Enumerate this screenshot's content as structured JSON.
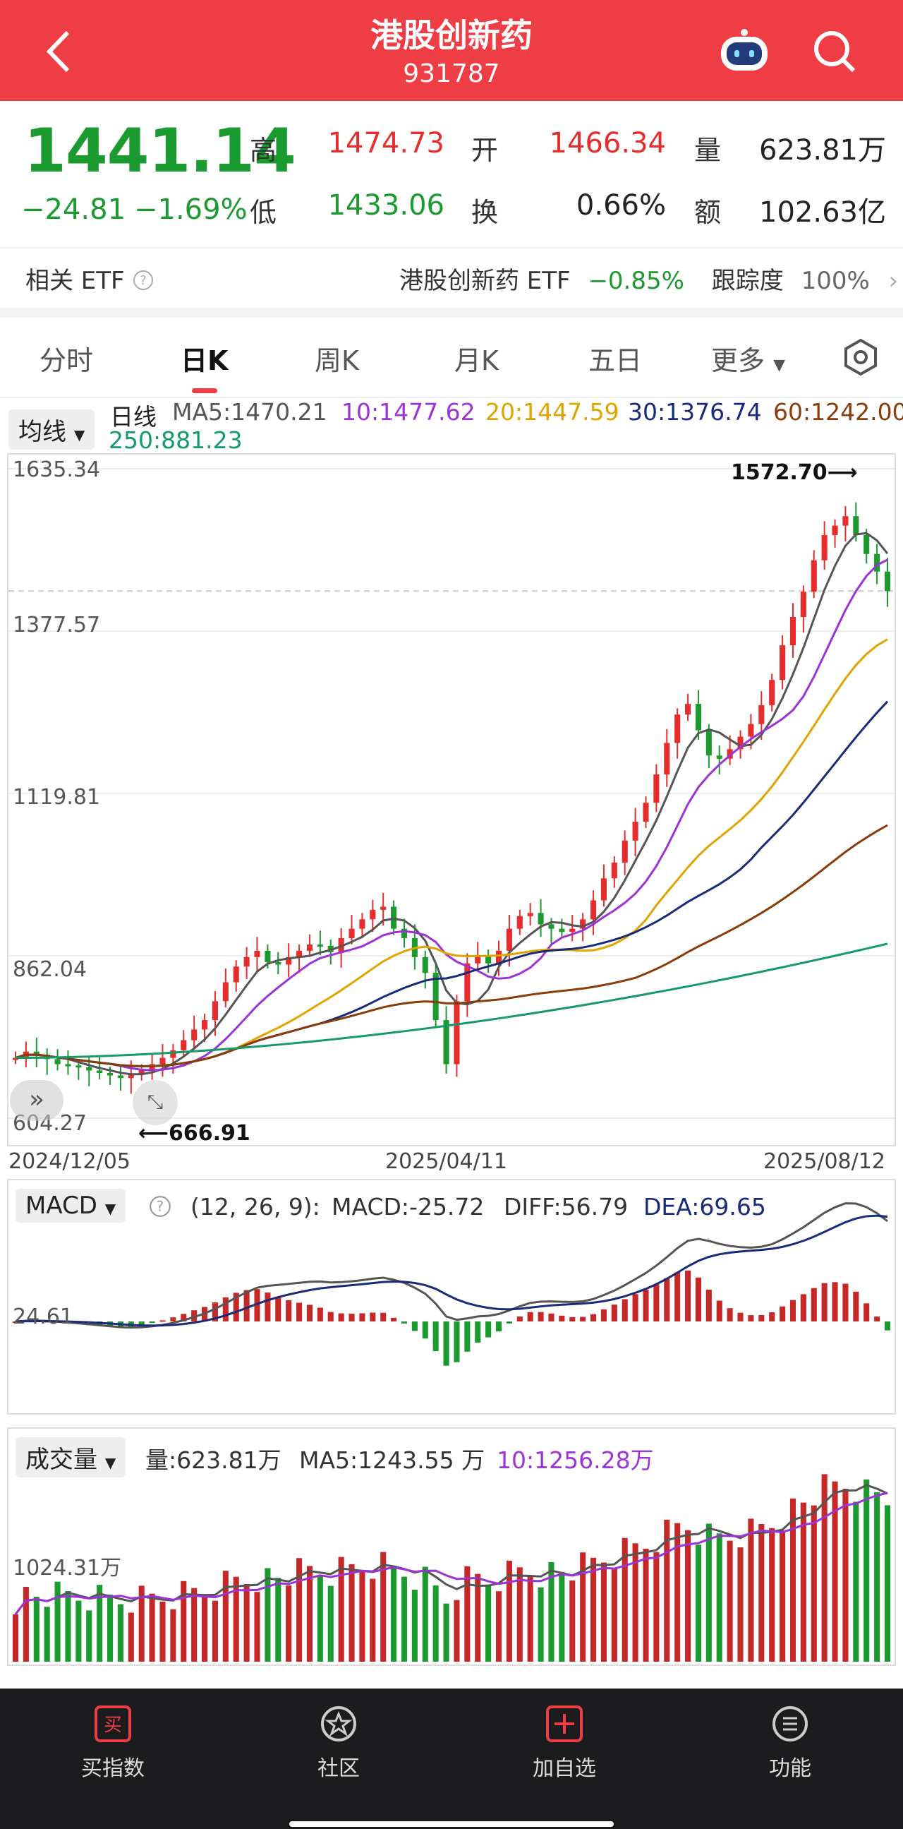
{
  "header": {
    "title": "港股创新药",
    "code": "931787"
  },
  "quote": {
    "price": "1441.14",
    "change": "−24.81",
    "change_pct": "−1.69%",
    "high_label": "高",
    "high": "1474.73",
    "open_label": "开",
    "open": "1466.34",
    "volume_label": "量",
    "volume": "623.81万",
    "low_label": "低",
    "low": "1433.06",
    "turnover_label": "换",
    "turnover": "0.66%",
    "amount_label": "额",
    "amount": "102.63亿"
  },
  "etf": {
    "label": "相关 ETF",
    "name": "港股创新药 ETF",
    "change": "−0.85%",
    "tracking_label": "跟踪度",
    "tracking": "100%"
  },
  "tabs": [
    "分时",
    "日K",
    "周K",
    "月K",
    "五日",
    "更多"
  ],
  "kline": {
    "selector": "均线",
    "line_label": "日线",
    "ma5": "MA5:1470.21",
    "ma10": "10:1477.62",
    "ma20": "20:1447.59",
    "ma30": "30:1376.74",
    "ma60": "60:1242.00",
    "ma250": "250:881.23",
    "y_labels": [
      "1635.34",
      "1377.57",
      "1119.81",
      "862.04",
      "604.27"
    ],
    "max_mark": "1572.70⟶",
    "min_mark": "⟵666.91",
    "dates": [
      "2024/12/05",
      "2025/04/11",
      "2025/08/12"
    ]
  },
  "macd": {
    "selector": "MACD",
    "params": "(12, 26, 9):",
    "macd": "MACD:-25.72",
    "diff": "DIFF:56.79",
    "dea": "DEA:69.65",
    "y_label": "24.61"
  },
  "volume": {
    "selector": "成交量",
    "vol": "量:623.81万",
    "ma5": "MA5:1243.55 万",
    "ma10": "10:1256.28万",
    "y_label": "1024.31万"
  },
  "nav": [
    "买指数",
    "社区",
    "加自选",
    "功能"
  ],
  "colors": {
    "brand": "#ee3d44",
    "up": "#e62c2c",
    "down": "#1a9a2f"
  },
  "chart_data": {
    "type": "candlestick",
    "x_range": [
      "2024/12/05",
      "2025/08/12"
    ],
    "y_range": [
      604.27,
      1635.34
    ],
    "close": [
      700,
      710,
      705,
      698,
      690,
      688,
      685,
      680,
      676,
      672,
      668,
      674,
      680,
      690,
      700,
      712,
      728,
      745,
      760,
      790,
      820,
      845,
      860,
      870,
      852,
      848,
      860,
      870,
      880,
      878,
      868,
      890,
      905,
      920,
      935,
      940,
      905,
      890,
      860,
      835,
      760,
      690,
      790,
      850,
      862,
      850,
      870,
      905,
      925,
      930,
      912,
      905,
      900,
      905,
      920,
      950,
      985,
      1010,
      1045,
      1075,
      1105,
      1150,
      1200,
      1245,
      1262,
      1220,
      1180,
      1175,
      1190,
      1210,
      1230,
      1260,
      1300,
      1355,
      1400,
      1440,
      1490,
      1530,
      1545,
      1560,
      1530,
      1500,
      1472,
      1441
    ],
    "ma_latest": {
      "MA5": 1470.21,
      "MA10": 1477.62,
      "MA20": 1447.59,
      "MA30": 1376.74,
      "MA60": 1242.0,
      "MA250": 881.23
    },
    "high_marker": 1572.7,
    "low_marker": 666.91
  }
}
